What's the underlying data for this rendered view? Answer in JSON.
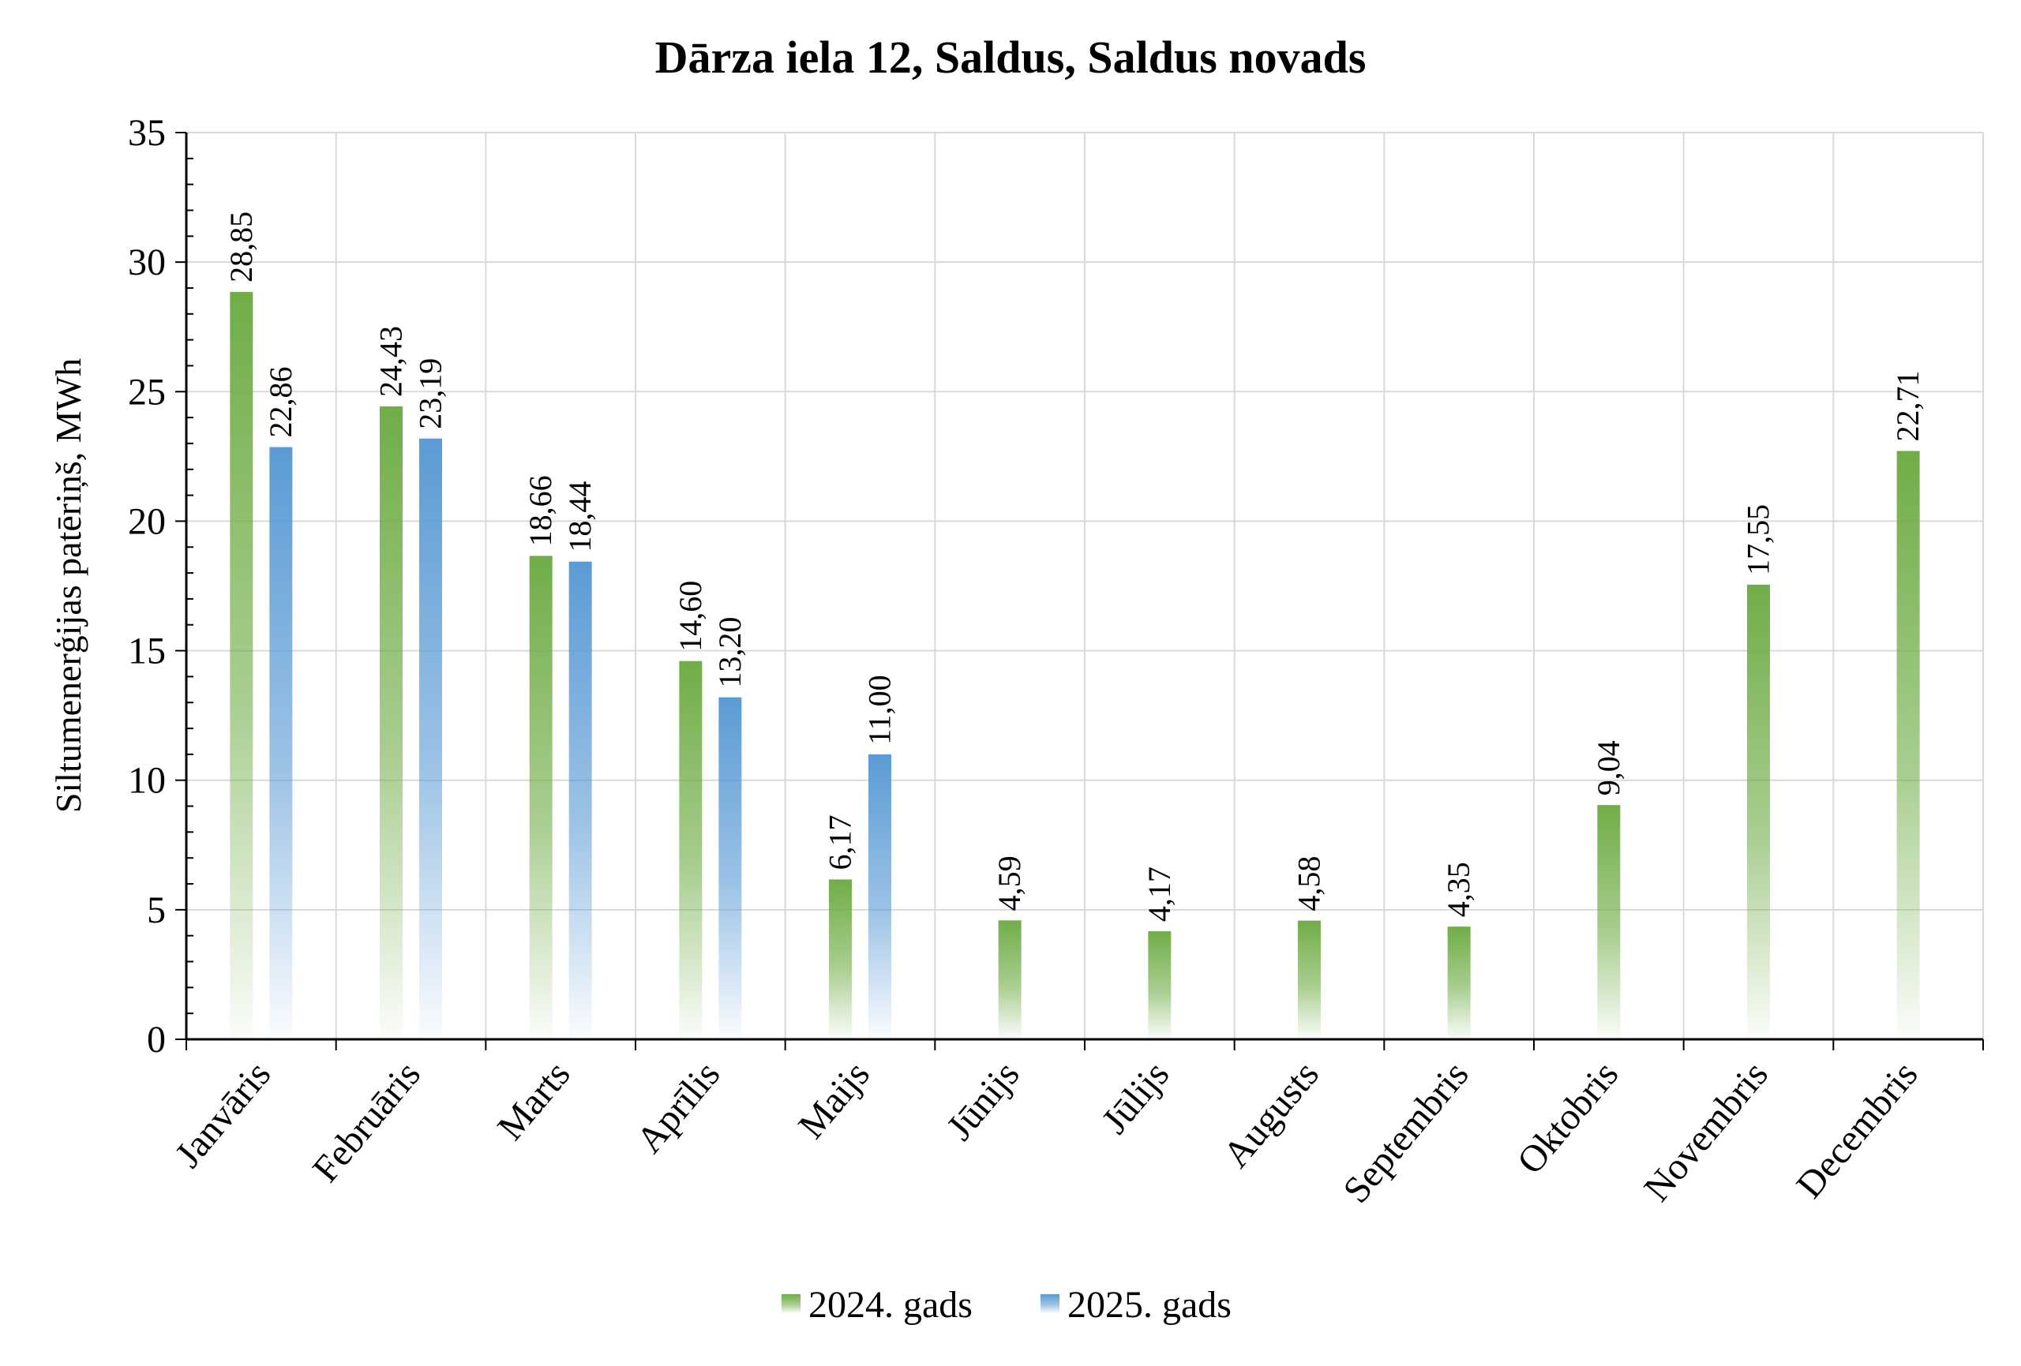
{
  "chart_data": {
    "type": "bar",
    "title": "Dārza iela 12, Saldus, Saldus novads",
    "xlabel": "",
    "ylabel": "Siltumenerģijas patēriņš, MWh",
    "ylim": [
      0,
      35
    ],
    "yticks": [
      0,
      5,
      10,
      15,
      20,
      25,
      30,
      35
    ],
    "grid": true,
    "legend_position": "bottom",
    "categories": [
      "Janvāris",
      "Februāris",
      "Marts",
      "Aprīlis",
      "Maijs",
      "Jūnijs",
      "Jūlijs",
      "Augusts",
      "Septembris",
      "Oktobris",
      "Novembris",
      "Decembris"
    ],
    "series": [
      {
        "name": "2024. gads",
        "color": "#70ad47",
        "values": [
          28.85,
          24.43,
          18.66,
          14.6,
          6.17,
          4.59,
          4.17,
          4.58,
          4.35,
          9.04,
          17.55,
          22.71
        ],
        "labels": [
          "28,85",
          "24,43",
          "18,66",
          "14,60",
          "6,17",
          "4,59",
          "4,17",
          "4,58",
          "4,35",
          "9,04",
          "17,55",
          "22,71"
        ]
      },
      {
        "name": "2025. gads",
        "color": "#5b9bd5",
        "values": [
          22.86,
          23.19,
          18.44,
          13.2,
          11.0,
          null,
          null,
          null,
          null,
          null,
          null,
          null
        ],
        "labels": [
          "22,86",
          "23,19",
          "18,44",
          "13,20",
          "11,00",
          null,
          null,
          null,
          null,
          null,
          null,
          null
        ]
      }
    ]
  }
}
